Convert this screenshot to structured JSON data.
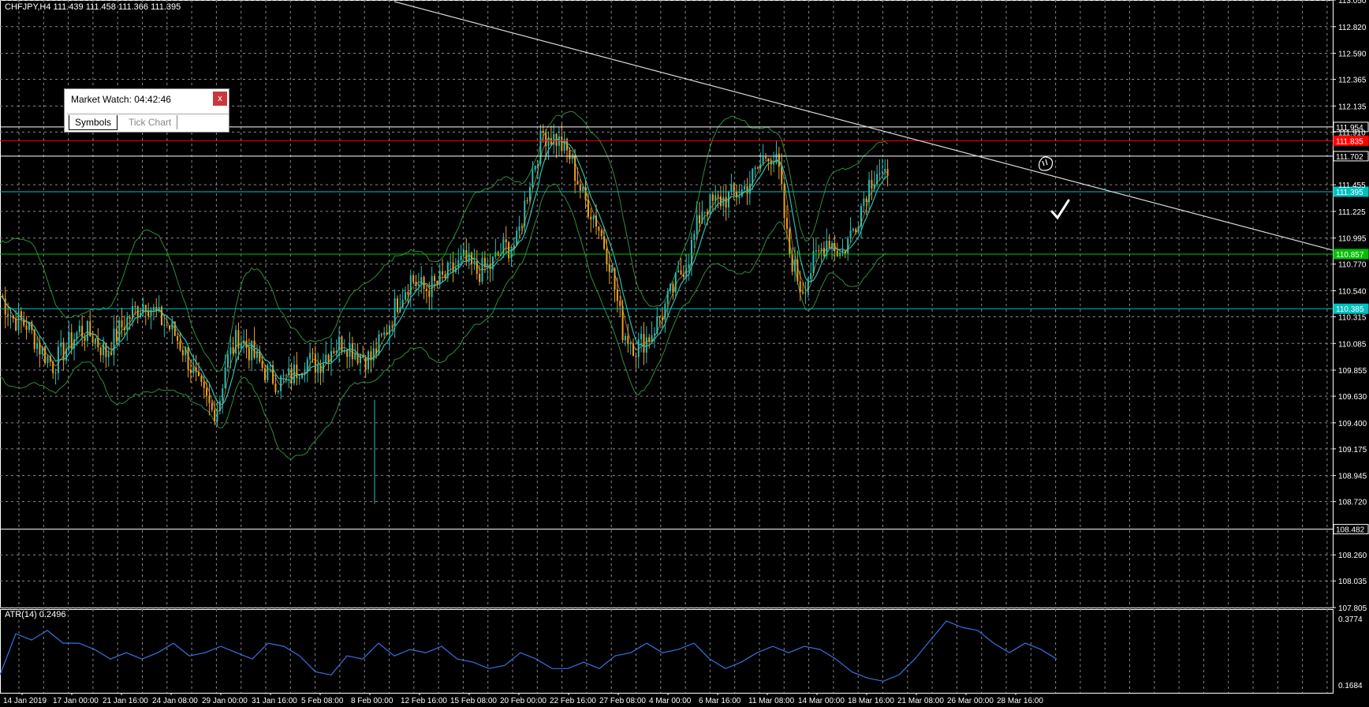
{
  "header": {
    "text": "CHFJPY,H4  111.439 111.458 111.366 111.395"
  },
  "market_watch": {
    "title": "Market Watch: 04:42:46",
    "close_label": "x",
    "tabs": [
      {
        "label": "Symbols",
        "active": true
      },
      {
        "label": "Tick Chart",
        "active": false
      }
    ]
  },
  "price_scale": {
    "labels": [
      "113.050",
      "112.820",
      "112.590",
      "112.365",
      "112.135",
      "111.910",
      "111.455",
      "111.225",
      "110.995",
      "110.770",
      "110.540",
      "110.315",
      "110.085",
      "109.855",
      "109.630",
      "109.400",
      "109.175",
      "108.945",
      "108.720",
      "108.260",
      "108.035",
      "107.805"
    ],
    "range": [
      107.805,
      113.05
    ]
  },
  "levels": [
    {
      "price": 111.954,
      "label": "111.954",
      "color": "#ffffff"
    },
    {
      "price": 111.835,
      "label": "111.835",
      "color": "#ff0000"
    },
    {
      "price": 111.702,
      "label": "111.702",
      "color": "#ffffff"
    },
    {
      "price": 111.395,
      "label": "111.395",
      "color": "#00c0c0"
    },
    {
      "price": 110.857,
      "label": "110.857",
      "color": "#00c000"
    },
    {
      "price": 110.385,
      "label": "110.385",
      "color": "#00c0c0"
    },
    {
      "price": 108.482,
      "label": "108.482",
      "color": "#ffffff"
    }
  ],
  "time_axis": {
    "labels": [
      "14 Jan 2019",
      "17 Jan 00:00",
      "21 Jan 16:00",
      "24 Jan 08:00",
      "29 Jan 00:00",
      "31 Jan 16:00",
      "5 Feb 08:00",
      "8 Feb 00:00",
      "12 Feb 16:00",
      "15 Feb 08:00",
      "20 Feb 00:00",
      "22 Feb 16:00",
      "27 Feb 08:00",
      "4 Mar 00:00",
      "6 Mar 16:00",
      "11 Mar 08:00",
      "14 Mar 00:00",
      "18 Mar 16:00",
      "21 Mar 08:00",
      "26 Mar 00:00",
      "28 Mar 16:00"
    ]
  },
  "atr": {
    "label": "ATR(14) 0.2496",
    "scale_labels": [
      "0.3774",
      "0.1684"
    ],
    "range": [
      0.1684,
      0.3774
    ],
    "color": "#3a6fe0"
  },
  "colors": {
    "background": "#000000",
    "grid": "#8a8a8a",
    "bull_candle": "#2bbcb6",
    "bear_candle": "#f0a020",
    "ma": "#2bbcb6",
    "bands": "#2e8b3e",
    "trendline": "#d8d8d8"
  },
  "chart_data": {
    "type": "candlestick",
    "symbol": "CHFJPY",
    "timeframe": "H4",
    "ylim": [
      107.805,
      113.05
    ],
    "close_path": [
      [
        0,
        110.5
      ],
      [
        20,
        110.3
      ],
      [
        40,
        110.25
      ],
      [
        60,
        110.05
      ],
      [
        80,
        109.9
      ],
      [
        100,
        110.05
      ],
      [
        120,
        110.2
      ],
      [
        140,
        110.15
      ],
      [
        160,
        110.0
      ],
      [
        180,
        110.2
      ],
      [
        200,
        110.35
      ],
      [
        220,
        110.45
      ],
      [
        240,
        110.3
      ],
      [
        260,
        110.2
      ],
      [
        280,
        110.0
      ],
      [
        300,
        109.7
      ],
      [
        320,
        109.5
      ],
      [
        330,
        109.55
      ],
      [
        340,
        109.9
      ],
      [
        360,
        110.15
      ],
      [
        380,
        110.0
      ],
      [
        400,
        109.85
      ],
      [
        420,
        109.75
      ],
      [
        440,
        109.8
      ],
      [
        460,
        109.95
      ],
      [
        480,
        109.9
      ],
      [
        500,
        110.05
      ],
      [
        520,
        110.1
      ],
      [
        540,
        110.0
      ],
      [
        560,
        109.95
      ],
      [
        580,
        110.15
      ],
      [
        600,
        110.45
      ],
      [
        620,
        110.65
      ],
      [
        640,
        110.55
      ],
      [
        660,
        110.6
      ],
      [
        680,
        110.7
      ],
      [
        700,
        110.8
      ],
      [
        720,
        110.7
      ],
      [
        740,
        110.75
      ],
      [
        760,
        110.9
      ],
      [
        780,
        110.95
      ],
      [
        800,
        111.5
      ],
      [
        820,
        111.9
      ],
      [
        840,
        111.85
      ],
      [
        860,
        111.7
      ],
      [
        880,
        111.35
      ],
      [
        900,
        111.15
      ],
      [
        920,
        110.8
      ],
      [
        940,
        110.2
      ],
      [
        960,
        110.05
      ],
      [
        980,
        110.15
      ],
      [
        1000,
        110.35
      ],
      [
        1020,
        110.6
      ],
      [
        1040,
        110.85
      ],
      [
        1060,
        111.25
      ],
      [
        1080,
        111.3
      ],
      [
        1100,
        111.35
      ],
      [
        1120,
        111.4
      ],
      [
        1140,
        111.55
      ],
      [
        1160,
        111.75
      ],
      [
        1175,
        111.6
      ],
      [
        1190,
        110.9
      ],
      [
        1210,
        110.55
      ],
      [
        1230,
        110.8
      ],
      [
        1250,
        111.0
      ],
      [
        1270,
        110.85
      ],
      [
        1290,
        111.1
      ],
      [
        1310,
        111.45
      ],
      [
        1325,
        111.6
      ],
      [
        1340,
        111.45
      ]
    ],
    "atr_path": [
      [
        0,
        0.2
      ],
      [
        20,
        0.33
      ],
      [
        40,
        0.31
      ],
      [
        60,
        0.34
      ],
      [
        80,
        0.3
      ],
      [
        100,
        0.3
      ],
      [
        120,
        0.28
      ],
      [
        140,
        0.25
      ],
      [
        160,
        0.27
      ],
      [
        180,
        0.25
      ],
      [
        200,
        0.27
      ],
      [
        220,
        0.3
      ],
      [
        240,
        0.26
      ],
      [
        260,
        0.27
      ],
      [
        280,
        0.29
      ],
      [
        300,
        0.27
      ],
      [
        320,
        0.25
      ],
      [
        340,
        0.3
      ],
      [
        360,
        0.29
      ],
      [
        380,
        0.26
      ],
      [
        400,
        0.21
      ],
      [
        420,
        0.2
      ],
      [
        440,
        0.26
      ],
      [
        460,
        0.25
      ],
      [
        480,
        0.3
      ],
      [
        500,
        0.26
      ],
      [
        520,
        0.28
      ],
      [
        540,
        0.27
      ],
      [
        560,
        0.29
      ],
      [
        580,
        0.25
      ],
      [
        600,
        0.24
      ],
      [
        620,
        0.22
      ],
      [
        640,
        0.23
      ],
      [
        660,
        0.27
      ],
      [
        680,
        0.25
      ],
      [
        700,
        0.22
      ],
      [
        720,
        0.22
      ],
      [
        740,
        0.24
      ],
      [
        760,
        0.22
      ],
      [
        780,
        0.26
      ],
      [
        800,
        0.27
      ],
      [
        820,
        0.3
      ],
      [
        840,
        0.27
      ],
      [
        860,
        0.28
      ],
      [
        880,
        0.3
      ],
      [
        900,
        0.25
      ],
      [
        920,
        0.22
      ],
      [
        940,
        0.24
      ],
      [
        960,
        0.27
      ],
      [
        980,
        0.29
      ],
      [
        1000,
        0.27
      ],
      [
        1020,
        0.29
      ],
      [
        1040,
        0.28
      ],
      [
        1060,
        0.25
      ],
      [
        1080,
        0.21
      ],
      [
        1100,
        0.19
      ],
      [
        1120,
        0.18
      ],
      [
        1140,
        0.2
      ],
      [
        1160,
        0.25
      ],
      [
        1180,
        0.31
      ],
      [
        1200,
        0.37
      ],
      [
        1220,
        0.35
      ],
      [
        1240,
        0.34
      ],
      [
        1260,
        0.3
      ],
      [
        1280,
        0.27
      ],
      [
        1300,
        0.3
      ],
      [
        1320,
        0.28
      ],
      [
        1340,
        0.25
      ]
    ]
  }
}
